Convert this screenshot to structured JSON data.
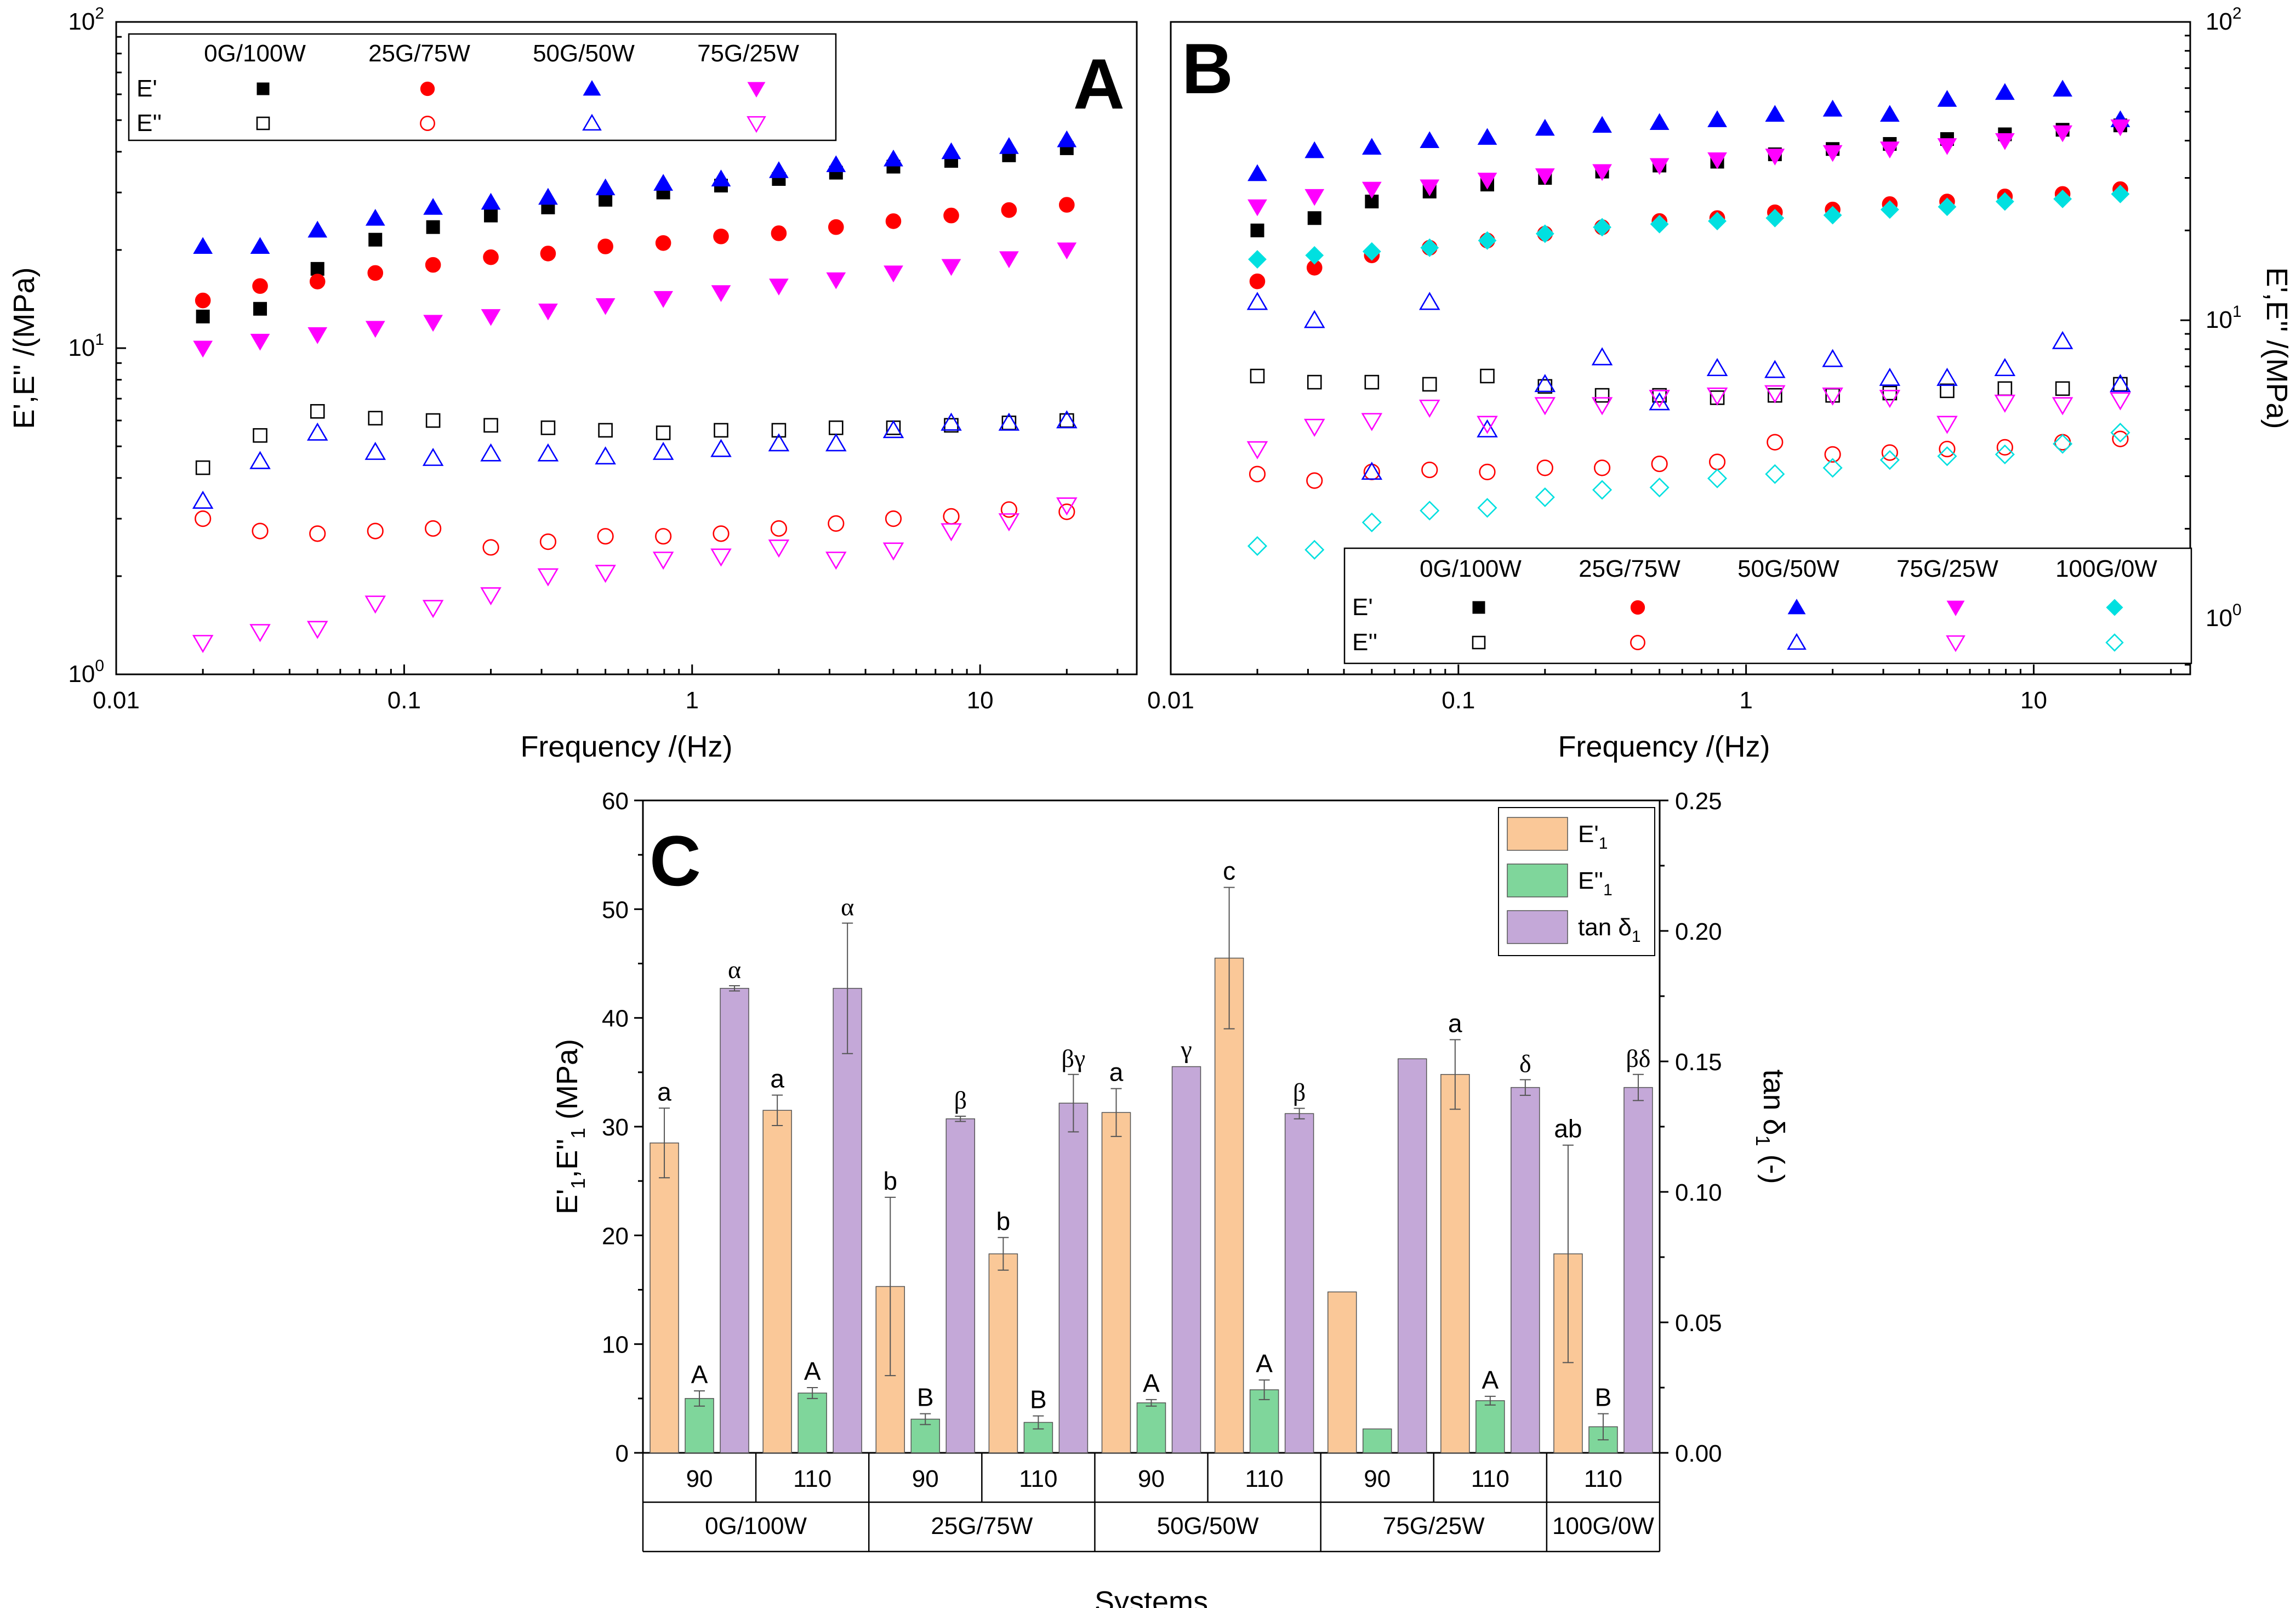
{
  "chart_data": [
    {
      "id": "A",
      "type": "scatter",
      "panel_label": "A",
      "xscale": "log",
      "yscale": "log",
      "xlim": [
        0.01,
        35
      ],
      "ylim": [
        1,
        100
      ],
      "xlabel": "Frequency /(Hz)",
      "ylabel": "E',E'' /(MPa)",
      "xticks": [
        {
          "v": 0.01,
          "label": "0.01"
        },
        {
          "v": 0.1,
          "label": "0.1"
        },
        {
          "v": 1,
          "label": "1"
        },
        {
          "v": 10,
          "label": "10"
        }
      ],
      "yticks": [
        {
          "v": 1,
          "base": "10",
          "exp": "0"
        },
        {
          "v": 10,
          "base": "10",
          "exp": "1"
        },
        {
          "v": 100,
          "base": "10",
          "exp": "2"
        }
      ],
      "yaxis_side": "left",
      "legend": {
        "position": "top-left",
        "row_labels": [
          "E'",
          "E''"
        ],
        "columns": [
          "0G/100W",
          "25G/75W",
          "50G/50W",
          "75G/25W"
        ]
      },
      "x": [
        0.02,
        0.0316,
        0.05,
        0.0794,
        0.126,
        0.2,
        0.316,
        0.5,
        0.794,
        1.26,
        2,
        3.16,
        5,
        7.94,
        12.6,
        20
      ],
      "series": [
        {
          "name": "0G/100W E'",
          "group": "0G/100W",
          "kind": "storage",
          "color": "#000000",
          "marker": "square",
          "filled": true,
          "values": [
            12.5,
            13.2,
            17.5,
            21.5,
            23.5,
            25.5,
            27,
            28.5,
            30,
            31.5,
            33,
            34.5,
            36,
            37.5,
            39,
            41
          ]
        },
        {
          "name": "25G/75W E'",
          "group": "25G/75W",
          "kind": "storage",
          "color": "#ff0000",
          "marker": "circle",
          "filled": true,
          "values": [
            14,
            15.5,
            16,
            17,
            18,
            19,
            19.5,
            20.5,
            21,
            22,
            22.5,
            23.5,
            24.5,
            25.5,
            26.5,
            27.5
          ]
        },
        {
          "name": "50G/50W E'",
          "group": "50G/50W",
          "kind": "storage",
          "color": "#0000ff",
          "marker": "triangle-up",
          "filled": true,
          "values": [
            20.5,
            20.5,
            23,
            25,
            27,
            28,
            29,
            31,
            32,
            33,
            35,
            36.5,
            38,
            40,
            41.5,
            43.5
          ]
        },
        {
          "name": "75G/25W E'",
          "group": "75G/25W",
          "kind": "storage",
          "color": "#ff00ff",
          "marker": "triangle-down",
          "filled": true,
          "values": [
            10,
            10.5,
            11,
            11.5,
            12,
            12.5,
            13,
            13.5,
            14.2,
            14.8,
            15.5,
            16.2,
            17,
            17.8,
            18.8,
            20
          ]
        },
        {
          "name": "0G/100W E''",
          "group": "0G/100W",
          "kind": "loss",
          "color": "#000000",
          "marker": "square",
          "filled": false,
          "values": [
            4.3,
            5.4,
            6.4,
            6.1,
            6,
            5.8,
            5.7,
            5.6,
            5.5,
            5.6,
            5.6,
            5.7,
            5.7,
            5.8,
            5.9,
            6
          ]
        },
        {
          "name": "25G/75W E''",
          "group": "25G/75W",
          "kind": "loss",
          "color": "#ff0000",
          "marker": "circle",
          "filled": false,
          "values": [
            3,
            2.75,
            2.7,
            2.75,
            2.8,
            2.45,
            2.55,
            2.65,
            2.65,
            2.7,
            2.8,
            2.9,
            3,
            3.05,
            3.2,
            3.15
          ]
        },
        {
          "name": "50G/50W E''",
          "group": "50G/50W",
          "kind": "loss",
          "color": "#0000ff",
          "marker": "triangle-up",
          "filled": false,
          "values": [
            3.4,
            4.5,
            5.5,
            4.8,
            4.6,
            4.75,
            4.75,
            4.65,
            4.8,
            4.9,
            5.1,
            5.1,
            5.6,
            5.9,
            5.9,
            6
          ]
        },
        {
          "name": "75G/25W E''",
          "group": "75G/25W",
          "kind": "loss",
          "color": "#ff00ff",
          "marker": "triangle-down",
          "filled": false,
          "values": [
            1.25,
            1.35,
            1.38,
            1.65,
            1.6,
            1.75,
            2,
            2.05,
            2.25,
            2.3,
            2.45,
            2.25,
            2.4,
            2.75,
            2.95,
            3.3
          ]
        }
      ]
    },
    {
      "id": "B",
      "type": "scatter",
      "panel_label": "B",
      "xscale": "log",
      "yscale": "log",
      "xlim": [
        0.01,
        35
      ],
      "ylim": [
        0.65,
        100
      ],
      "xlabel": "Frequency /(Hz)",
      "ylabel": "E',E'' /(MPa)",
      "xticks": [
        {
          "v": 0.01,
          "label": "0.01"
        },
        {
          "v": 0.1,
          "label": "0.1"
        },
        {
          "v": 1,
          "label": "1"
        },
        {
          "v": 10,
          "label": "10"
        }
      ],
      "yticks": [
        {
          "v": 1,
          "base": "10",
          "exp": "0"
        },
        {
          "v": 10,
          "base": "10",
          "exp": "1"
        },
        {
          "v": 100,
          "base": "10",
          "exp": "2"
        }
      ],
      "yaxis_side": "right",
      "legend": {
        "position": "bottom-right",
        "row_labels": [
          "E'",
          "E''"
        ],
        "columns": [
          "0G/100W",
          "25G/75W",
          "50G/50W",
          "75G/25W",
          "100G/0W"
        ]
      },
      "x": [
        0.02,
        0.0316,
        0.05,
        0.0794,
        0.126,
        0.2,
        0.316,
        0.5,
        0.794,
        1.26,
        2,
        3.16,
        5,
        7.94,
        12.6,
        20
      ],
      "series": [
        {
          "name": "0G/100W E'",
          "group": "0G/100W",
          "kind": "storage",
          "color": "#000000",
          "marker": "square",
          "filled": true,
          "values": [
            20,
            22,
            25,
            27,
            28.5,
            30,
            31.5,
            33,
            34,
            36,
            37.5,
            39,
            40.5,
            42,
            43.5,
            45
          ]
        },
        {
          "name": "25G/75W E'",
          "group": "25G/75W",
          "kind": "storage",
          "color": "#ff0000",
          "marker": "circle",
          "filled": true,
          "values": [
            13.5,
            15,
            16.5,
            17.5,
            18.5,
            19.5,
            20.5,
            21.5,
            22,
            23,
            23.5,
            24.5,
            25,
            26,
            26.5,
            27.5
          ]
        },
        {
          "name": "50G/50W E'",
          "group": "50G/50W",
          "kind": "storage",
          "color": "#0000ff",
          "marker": "triangle-up",
          "filled": true,
          "values": [
            31,
            37,
            38,
            40,
            41,
            44,
            45,
            46,
            47,
            49,
            51,
            49,
            55,
            58,
            59.5,
            47
          ]
        },
        {
          "name": "75G/25W E'",
          "group": "75G/25W",
          "kind": "storage",
          "color": "#ff00ff",
          "marker": "triangle-down",
          "filled": true,
          "values": [
            24,
            26,
            27.5,
            28,
            29.5,
            30.5,
            31.5,
            33,
            34.5,
            35.5,
            36.5,
            37.5,
            38.5,
            40,
            42.5,
            44.5
          ]
        },
        {
          "name": "100G/0W E'",
          "group": "100G/0W",
          "kind": "storage",
          "color": "#00e0e0",
          "marker": "diamond",
          "filled": true,
          "values": [
            16,
            16.5,
            17,
            17.5,
            18.5,
            19.5,
            20.5,
            21,
            21.5,
            22,
            22.5,
            23.5,
            24,
            25,
            25.5,
            26.5
          ]
        },
        {
          "name": "0G/100W E''",
          "group": "0G/100W",
          "kind": "loss",
          "color": "#000000",
          "marker": "square",
          "filled": false,
          "values": [
            6.5,
            6.2,
            6.2,
            6.1,
            6.5,
            6,
            5.6,
            5.6,
            5.5,
            5.6,
            5.6,
            5.7,
            5.8,
            5.9,
            5.9,
            6.1
          ]
        },
        {
          "name": "25G/75W E''",
          "group": "25G/75W",
          "kind": "loss",
          "color": "#ff0000",
          "marker": "circle",
          "filled": false,
          "values": [
            3.05,
            2.9,
            3.1,
            3.15,
            3.1,
            3.2,
            3.2,
            3.3,
            3.35,
            3.9,
            3.55,
            3.6,
            3.7,
            3.75,
            3.9,
            4
          ]
        },
        {
          "name": "50G/50W E''",
          "group": "50G/50W",
          "kind": "loss",
          "color": "#0000ff",
          "marker": "triangle-up",
          "filled": false,
          "values": [
            11.5,
            10,
            3.1,
            11.5,
            4.3,
            6.1,
            7.5,
            5.3,
            6.9,
            6.8,
            7.4,
            6.4,
            6.4,
            6.9,
            8.5,
            6.1
          ]
        },
        {
          "name": "75G/25W E''",
          "group": "75G/25W",
          "kind": "loss",
          "color": "#ff00ff",
          "marker": "triangle-down",
          "filled": false,
          "values": [
            3.7,
            4.4,
            4.6,
            5.1,
            4.5,
            5.2,
            5.2,
            5.5,
            5.6,
            5.7,
            5.6,
            5.5,
            4.5,
            5.3,
            5.2,
            5.4
          ]
        },
        {
          "name": "100G/0W E''",
          "group": "100G/0W",
          "kind": "loss",
          "color": "#00e0e0",
          "marker": "diamond",
          "filled": false,
          "values": [
            1.75,
            1.7,
            2.1,
            2.3,
            2.35,
            2.55,
            2.7,
            2.75,
            2.95,
            3.05,
            3.2,
            3.4,
            3.5,
            3.55,
            3.85,
            4.2
          ]
        }
      ]
    },
    {
      "id": "C",
      "type": "bar",
      "panel_label": "C",
      "xlabel": "Systems",
      "ylabel": "E'1,E''1 (MPa)",
      "ylabel_parts": {
        "a": "E'",
        "sub1": "1",
        "b": ",E''",
        "sub2": "1",
        "c": " (MPa)"
      },
      "ylabel_right_parts": {
        "a": "tan δ",
        "sub": "1",
        "b": " (-)"
      },
      "ylim": [
        0,
        60
      ],
      "ylim_right": [
        0,
        0.25
      ],
      "yticks_left": [
        "0",
        "10",
        "20",
        "30",
        "40",
        "50",
        "60"
      ],
      "yticks_right": [
        "0.00",
        "0.05",
        "0.10",
        "0.15",
        "0.20",
        "0.25"
      ],
      "legend": {
        "position": "top-right",
        "entries": [
          {
            "main": "E'",
            "sub": "1",
            "color": "#fac898"
          },
          {
            "main": "E''",
            "sub": "1",
            "color": "#7fd69b"
          },
          {
            "main": "tan δ",
            "sub": "1",
            "color": "#c4a8d8"
          }
        ]
      },
      "groups": [
        {
          "label": "0G/100W",
          "categories": [
            "90",
            "110"
          ]
        },
        {
          "label": "25G/75W",
          "categories": [
            "90",
            "110"
          ]
        },
        {
          "label": "50G/50W",
          "categories": [
            "90",
            "110"
          ]
        },
        {
          "label": "75G/25W",
          "categories": [
            "90",
            "110"
          ]
        },
        {
          "label": "100G/0W",
          "categories": [
            "110"
          ]
        }
      ],
      "categories": [
        "90",
        "110",
        "90",
        "110",
        "90",
        "110",
        "90",
        "110",
        "110"
      ],
      "series": [
        {
          "name": "E'1",
          "axis": "left",
          "color": "#fac898",
          "values": [
            28.5,
            31.5,
            15.3,
            18.3,
            31.3,
            45.5,
            14.8,
            34.8,
            18.3
          ],
          "errors": [
            3.2,
            1.4,
            8.2,
            1.5,
            2.2,
            6.5,
            0,
            3.2,
            10.0
          ],
          "labels": [
            "a",
            "a",
            "b",
            "b",
            "a",
            "c",
            "",
            "a",
            "ab"
          ]
        },
        {
          "name": "E''1",
          "axis": "left",
          "color": "#7fd69b",
          "values": [
            5.0,
            5.5,
            3.1,
            2.8,
            4.6,
            5.8,
            2.2,
            4.8,
            2.4
          ],
          "errors": [
            0.7,
            0.5,
            0.5,
            0.6,
            0.3,
            0.9,
            0,
            0.4,
            1.2
          ],
          "labels": [
            "A",
            "A",
            "B",
            "B",
            "A",
            "A",
            "",
            "A",
            "B"
          ]
        },
        {
          "name": "tan δ1",
          "axis": "right",
          "color": "#c4a8d8",
          "values": [
            0.178,
            0.178,
            0.128,
            0.134,
            0.148,
            0.13,
            0.151,
            0.14,
            0.14
          ],
          "errors": [
            0.001,
            0.025,
            0.001,
            0.011,
            0,
            0.002,
            0,
            0.003,
            0.005
          ],
          "labels": [
            "α",
            "α",
            "β",
            "βγ",
            "γ",
            "β",
            "",
            "δ",
            "βδ"
          ]
        }
      ]
    }
  ]
}
